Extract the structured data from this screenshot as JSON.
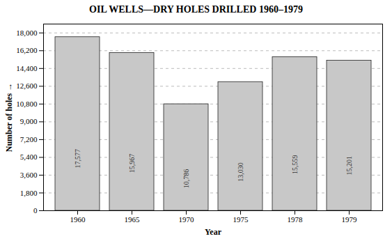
{
  "chart_data": {
    "type": "bar",
    "title": "OIL WELLS—DRY HOLES DRILLED 1960–1979",
    "xlabel": "Year",
    "ylabel": "Number of holes",
    "categories": [
      "1960",
      "1965",
      "1970",
      "1975",
      "1978",
      "1979"
    ],
    "values": [
      17577,
      15967,
      10786,
      13030,
      15559,
      15201
    ],
    "value_labels": [
      "17,577",
      "15,967",
      "10,786",
      "13,030",
      "15,559",
      "15,201"
    ],
    "data_labels": true,
    "color": "#c8c8c8",
    "ylim": [
      0,
      18900
    ],
    "yticks": [
      0,
      {
        "value": 1800,
        "label": "1,800"
      },
      {
        "value": 3600,
        "label": "3,600"
      },
      {
        "value": 5400,
        "label": "5,400"
      },
      {
        "value": 7200,
        "label": "7,200"
      },
      {
        "value": 9000,
        "label": "9,000"
      },
      {
        "value": 10800,
        "label": "10,800"
      },
      {
        "value": 12600,
        "label": "12,600"
      },
      {
        "value": 14400,
        "label": "14,400"
      },
      {
        "value": 16200,
        "label": "16,200"
      },
      {
        "value": 18000,
        "label": "18,000"
      }
    ],
    "grid": true
  }
}
